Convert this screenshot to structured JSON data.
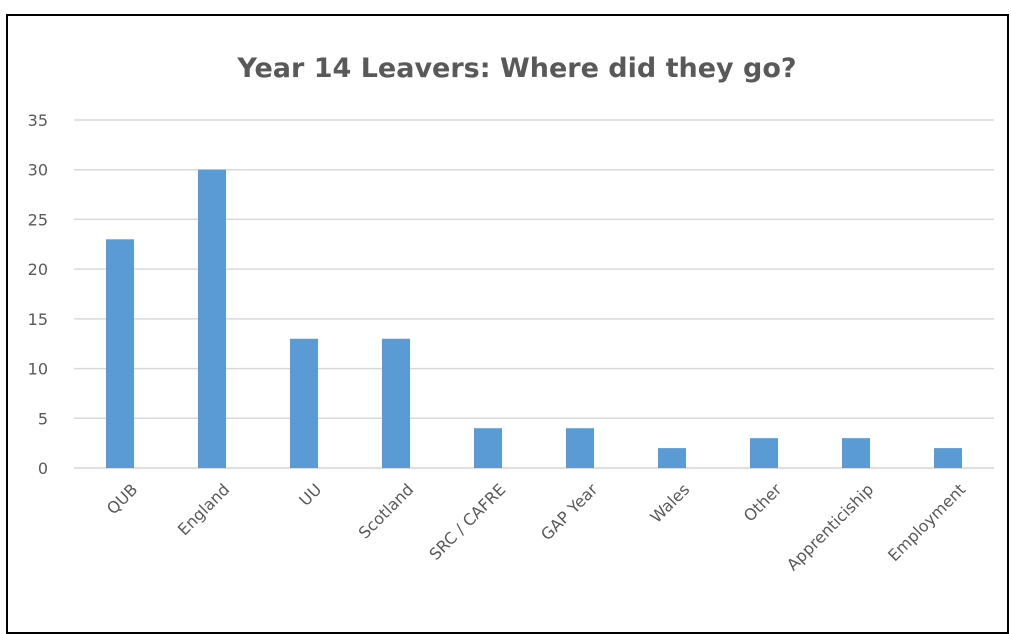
{
  "chart_data": {
    "type": "bar",
    "title": "Year 14 Leavers: Where did they go?",
    "categories": [
      "QUB",
      "England",
      "UU",
      "Scotland",
      "SRC / CAFRE",
      "GAP Year",
      "Wales",
      "Other",
      "Apprenticiship",
      "Employment"
    ],
    "values": [
      23,
      30,
      13,
      13,
      4,
      4,
      2,
      3,
      3,
      2
    ],
    "yticks": [
      0,
      5,
      10,
      15,
      20,
      25,
      30,
      35
    ],
    "ylim": [
      0,
      35
    ],
    "xlabel": "",
    "ylabel": "",
    "grid": true,
    "legend": "none",
    "bar_color": "#5B9BD5",
    "grid_color": "#D9D9D9",
    "text_color": "#595959"
  }
}
